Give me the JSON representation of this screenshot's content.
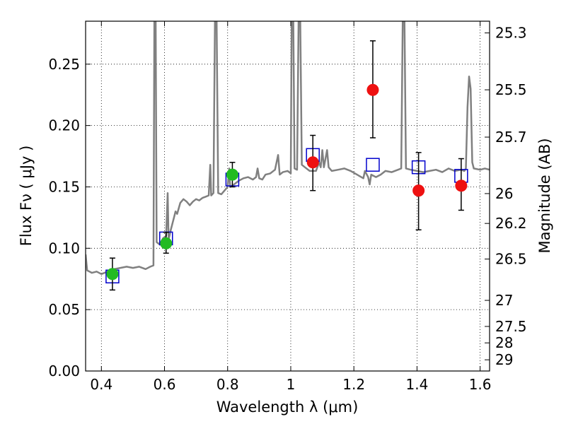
{
  "chart_data": {
    "type": "scatter",
    "xlabel": "Wavelength  λ (μm)",
    "ylabel": "Flux  Fν  ( μJy )",
    "y2label": "Magnitude (AB)",
    "xlim": [
      0.35,
      1.63
    ],
    "ylim": [
      0.0,
      0.285
    ],
    "grid": true,
    "xticks": [
      0.4,
      0.6,
      0.8,
      1.0,
      1.2,
      1.4,
      1.6
    ],
    "xtick_labels": [
      "0.4",
      "0.6",
      "0.8",
      "1",
      "1.2",
      "1.4",
      "1.6"
    ],
    "yticks": [
      0.0,
      0.05,
      0.1,
      0.15,
      0.2,
      0.25
    ],
    "ytick_labels": [
      "0.00",
      "0.05",
      "0.10",
      "0.15",
      "0.20",
      "0.25"
    ],
    "mag_ticks": [
      {
        "label": "25.3",
        "mag": 25.3
      },
      {
        "label": "25.5",
        "mag": 25.5
      },
      {
        "label": "25.7",
        "mag": 25.7
      },
      {
        "label": "26",
        "mag": 26.0
      },
      {
        "label": "26.2",
        "mag": 26.2
      },
      {
        "label": "26.5",
        "mag": 26.5
      },
      {
        "label": "27",
        "mag": 27.0
      },
      {
        "label": "27.5",
        "mag": 27.5
      },
      {
        "label": "28",
        "mag": 28.0
      },
      {
        "label": "29",
        "mag": 29.0
      }
    ],
    "series": [
      {
        "marker": "open-square",
        "color": "#0000cc",
        "points": [
          {
            "x": 0.435,
            "y": 0.077
          },
          {
            "x": 0.605,
            "y": 0.108
          },
          {
            "x": 0.815,
            "y": 0.156
          },
          {
            "x": 1.07,
            "y": 0.176
          },
          {
            "x": 1.26,
            "y": 0.168
          },
          {
            "x": 1.405,
            "y": 0.166
          },
          {
            "x": 1.54,
            "y": 0.159
          }
        ]
      },
      {
        "marker": "filled-circle",
        "color": "#22bb22",
        "points": [
          {
            "x": 0.435,
            "y": 0.079,
            "yerr_lo": 0.066,
            "yerr_hi": 0.092
          },
          {
            "x": 0.605,
            "y": 0.104,
            "yerr_lo": 0.096,
            "yerr_hi": 0.113
          },
          {
            "x": 0.815,
            "y": 0.16,
            "yerr_lo": 0.15,
            "yerr_hi": 0.17
          }
        ]
      },
      {
        "marker": "filled-circle",
        "color": "#ee1111",
        "points": [
          {
            "x": 1.07,
            "y": 0.17,
            "yerr_lo": 0.147,
            "yerr_hi": 0.192
          },
          {
            "x": 1.26,
            "y": 0.229,
            "yerr_lo": 0.19,
            "yerr_hi": 0.269
          },
          {
            "x": 1.405,
            "y": 0.147,
            "yerr_lo": 0.115,
            "yerr_hi": 0.178
          },
          {
            "x": 1.54,
            "y": 0.151,
            "yerr_lo": 0.131,
            "yerr_hi": 0.173
          }
        ]
      }
    ],
    "template_spectrum": {
      "color": "#808080",
      "points": [
        [
          0.35,
          0.095
        ],
        [
          0.355,
          0.082
        ],
        [
          0.37,
          0.08
        ],
        [
          0.385,
          0.081
        ],
        [
          0.4,
          0.079
        ],
        [
          0.42,
          0.081
        ],
        [
          0.44,
          0.083
        ],
        [
          0.46,
          0.084
        ],
        [
          0.48,
          0.085
        ],
        [
          0.5,
          0.084
        ],
        [
          0.52,
          0.085
        ],
        [
          0.54,
          0.083
        ],
        [
          0.555,
          0.085
        ],
        [
          0.565,
          0.086
        ],
        [
          0.568,
          0.29
        ],
        [
          0.572,
          0.29
        ],
        [
          0.575,
          0.105
        ],
        [
          0.585,
          0.103
        ],
        [
          0.595,
          0.108
        ],
        [
          0.605,
          0.11
        ],
        [
          0.61,
          0.145
        ],
        [
          0.613,
          0.107
        ],
        [
          0.62,
          0.115
        ],
        [
          0.63,
          0.125
        ],
        [
          0.635,
          0.13
        ],
        [
          0.64,
          0.128
        ],
        [
          0.65,
          0.137
        ],
        [
          0.66,
          0.14
        ],
        [
          0.67,
          0.138
        ],
        [
          0.68,
          0.135
        ],
        [
          0.69,
          0.138
        ],
        [
          0.7,
          0.14
        ],
        [
          0.71,
          0.139
        ],
        [
          0.72,
          0.141
        ],
        [
          0.73,
          0.142
        ],
        [
          0.74,
          0.143
        ],
        [
          0.745,
          0.168
        ],
        [
          0.748,
          0.143
        ],
        [
          0.755,
          0.145
        ],
        [
          0.76,
          0.29
        ],
        [
          0.765,
          0.29
        ],
        [
          0.77,
          0.145
        ],
        [
          0.78,
          0.144
        ],
        [
          0.79,
          0.147
        ],
        [
          0.8,
          0.15
        ],
        [
          0.805,
          0.165
        ],
        [
          0.808,
          0.15
        ],
        [
          0.82,
          0.152
        ],
        [
          0.835,
          0.155
        ],
        [
          0.85,
          0.157
        ],
        [
          0.865,
          0.158
        ],
        [
          0.88,
          0.156
        ],
        [
          0.89,
          0.158
        ],
        [
          0.895,
          0.165
        ],
        [
          0.9,
          0.157
        ],
        [
          0.91,
          0.156
        ],
        [
          0.92,
          0.16
        ],
        [
          0.935,
          0.161
        ],
        [
          0.95,
          0.164
        ],
        [
          0.96,
          0.176
        ],
        [
          0.965,
          0.16
        ],
        [
          0.975,
          0.162
        ],
        [
          0.99,
          0.163
        ],
        [
          1.0,
          0.161
        ],
        [
          1.003,
          0.29
        ],
        [
          1.008,
          0.29
        ],
        [
          1.012,
          0.165
        ],
        [
          1.02,
          0.164
        ],
        [
          1.025,
          0.29
        ],
        [
          1.03,
          0.29
        ],
        [
          1.035,
          0.168
        ],
        [
          1.045,
          0.166
        ],
        [
          1.06,
          0.163
        ],
        [
          1.08,
          0.163
        ],
        [
          1.09,
          0.17
        ],
        [
          1.095,
          0.166
        ],
        [
          1.1,
          0.18
        ],
        [
          1.105,
          0.166
        ],
        [
          1.115,
          0.18
        ],
        [
          1.12,
          0.166
        ],
        [
          1.13,
          0.163
        ],
        [
          1.15,
          0.164
        ],
        [
          1.17,
          0.165
        ],
        [
          1.19,
          0.163
        ],
        [
          1.21,
          0.16
        ],
        [
          1.23,
          0.157
        ],
        [
          1.235,
          0.163
        ],
        [
          1.245,
          0.158
        ],
        [
          1.25,
          0.152
        ],
        [
          1.255,
          0.16
        ],
        [
          1.27,
          0.158
        ],
        [
          1.285,
          0.16
        ],
        [
          1.3,
          0.163
        ],
        [
          1.32,
          0.162
        ],
        [
          1.34,
          0.164
        ],
        [
          1.35,
          0.165
        ],
        [
          1.355,
          0.29
        ],
        [
          1.36,
          0.29
        ],
        [
          1.365,
          0.165
        ],
        [
          1.38,
          0.164
        ],
        [
          1.4,
          0.163
        ],
        [
          1.42,
          0.162
        ],
        [
          1.44,
          0.163
        ],
        [
          1.46,
          0.164
        ],
        [
          1.48,
          0.162
        ],
        [
          1.5,
          0.165
        ],
        [
          1.52,
          0.163
        ],
        [
          1.54,
          0.164
        ],
        [
          1.55,
          0.163
        ],
        [
          1.555,
          0.165
        ],
        [
          1.56,
          0.215
        ],
        [
          1.565,
          0.24
        ],
        [
          1.57,
          0.23
        ],
        [
          1.575,
          0.17
        ],
        [
          1.58,
          0.165
        ],
        [
          1.6,
          0.164
        ],
        [
          1.615,
          0.165
        ],
        [
          1.63,
          0.164
        ]
      ]
    }
  }
}
